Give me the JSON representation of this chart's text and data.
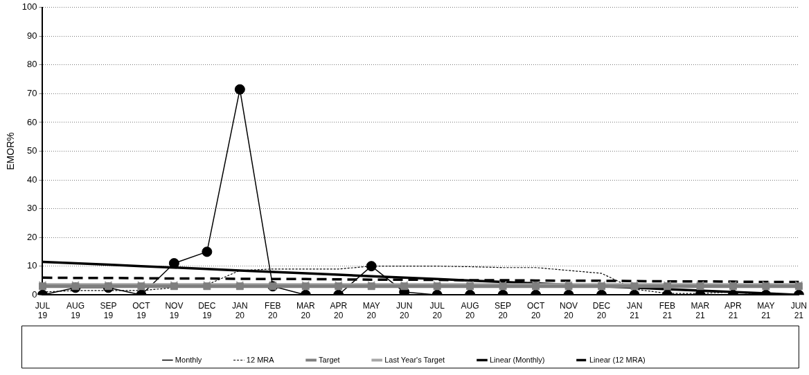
{
  "chart_data": {
    "type": "line",
    "ylabel": "EMOR%",
    "categories": [
      "JUL 19",
      "AUG 19",
      "SEP 19",
      "OCT 19",
      "NOV 19",
      "DEC 19",
      "JAN 20",
      "FEB 20",
      "MAR 20",
      "APR 20",
      "MAY 20",
      "JUN 20",
      "JUL 20",
      "AUG 20",
      "SEP 20",
      "OCT 20",
      "NOV 20",
      "DEC 20",
      "JAN 21",
      "FEB 21",
      "MAR 21",
      "APR 21",
      "MAY 21",
      "JUN 21"
    ],
    "series": [
      {
        "name": "Monthly",
        "color": "#000000",
        "marker": "circle",
        "line_style": "solid",
        "values": [
          0,
          2.5,
          2.5,
          0,
          11,
          15,
          71.5,
          3,
          0,
          0,
          10,
          1,
          0,
          0,
          0,
          0,
          0,
          0,
          0,
          0,
          0,
          0,
          0,
          0
        ]
      },
      {
        "name": "12 MRA",
        "color": "#000000",
        "marker": "none",
        "line_style": "dotted",
        "values": [
          1,
          1.5,
          1.5,
          1.5,
          2.5,
          3.5,
          8.5,
          9,
          9,
          9,
          10,
          10,
          10,
          9.8,
          9.5,
          9.5,
          8.5,
          7.5,
          2,
          0.5,
          0.5,
          1,
          0,
          0
        ]
      },
      {
        "name": "Target",
        "color": "#7f7f7f",
        "marker": "square",
        "line_style": "solid",
        "values": [
          3,
          3,
          3,
          3,
          3,
          3,
          3,
          3,
          3,
          3,
          3,
          3,
          3,
          3,
          3,
          3,
          3,
          3,
          3,
          3,
          3,
          3,
          3,
          3
        ]
      },
      {
        "name": "Last Year's Target",
        "color": "#a6a6a6",
        "marker": "cross",
        "line_style": "solid",
        "values": [
          3.5,
          3.5,
          3.5,
          3.5,
          3.5,
          3.5,
          3.5,
          3.5,
          3.5,
          3.5,
          3.5,
          3.5,
          3.5,
          3.5,
          3.5,
          3.5,
          3.5,
          3.5,
          3.5,
          3.5,
          3.5,
          3.5,
          3.5,
          3.5
        ]
      },
      {
        "name": "Linear (Monthly)",
        "color": "#000000",
        "marker": "none",
        "line_style": "solid",
        "values": [
          11.5,
          11,
          10.5,
          10,
          9.5,
          9,
          8.5,
          8,
          7.5,
          7,
          6.5,
          6,
          5.5,
          5,
          4.5,
          4,
          3.5,
          3,
          2.5,
          2,
          1.5,
          1,
          0.5,
          0
        ]
      },
      {
        "name": "Linear (12 MRA)",
        "color": "#000000",
        "marker": "none",
        "line_style": "dashed",
        "values": [
          6,
          5.9,
          5.9,
          5.8,
          5.7,
          5.7,
          5.6,
          5.5,
          5.5,
          5.4,
          5.3,
          5.3,
          5.2,
          5.1,
          5.1,
          5,
          4.9,
          4.9,
          4.8,
          4.7,
          4.7,
          4.6,
          4.5,
          4.5
        ]
      }
    ],
    "ylim": [
      0,
      100
    ],
    "yticks": [
      0,
      10,
      20,
      30,
      40,
      50,
      60,
      70,
      80,
      90,
      100
    ],
    "grid": "y",
    "legend": "bottom"
  }
}
